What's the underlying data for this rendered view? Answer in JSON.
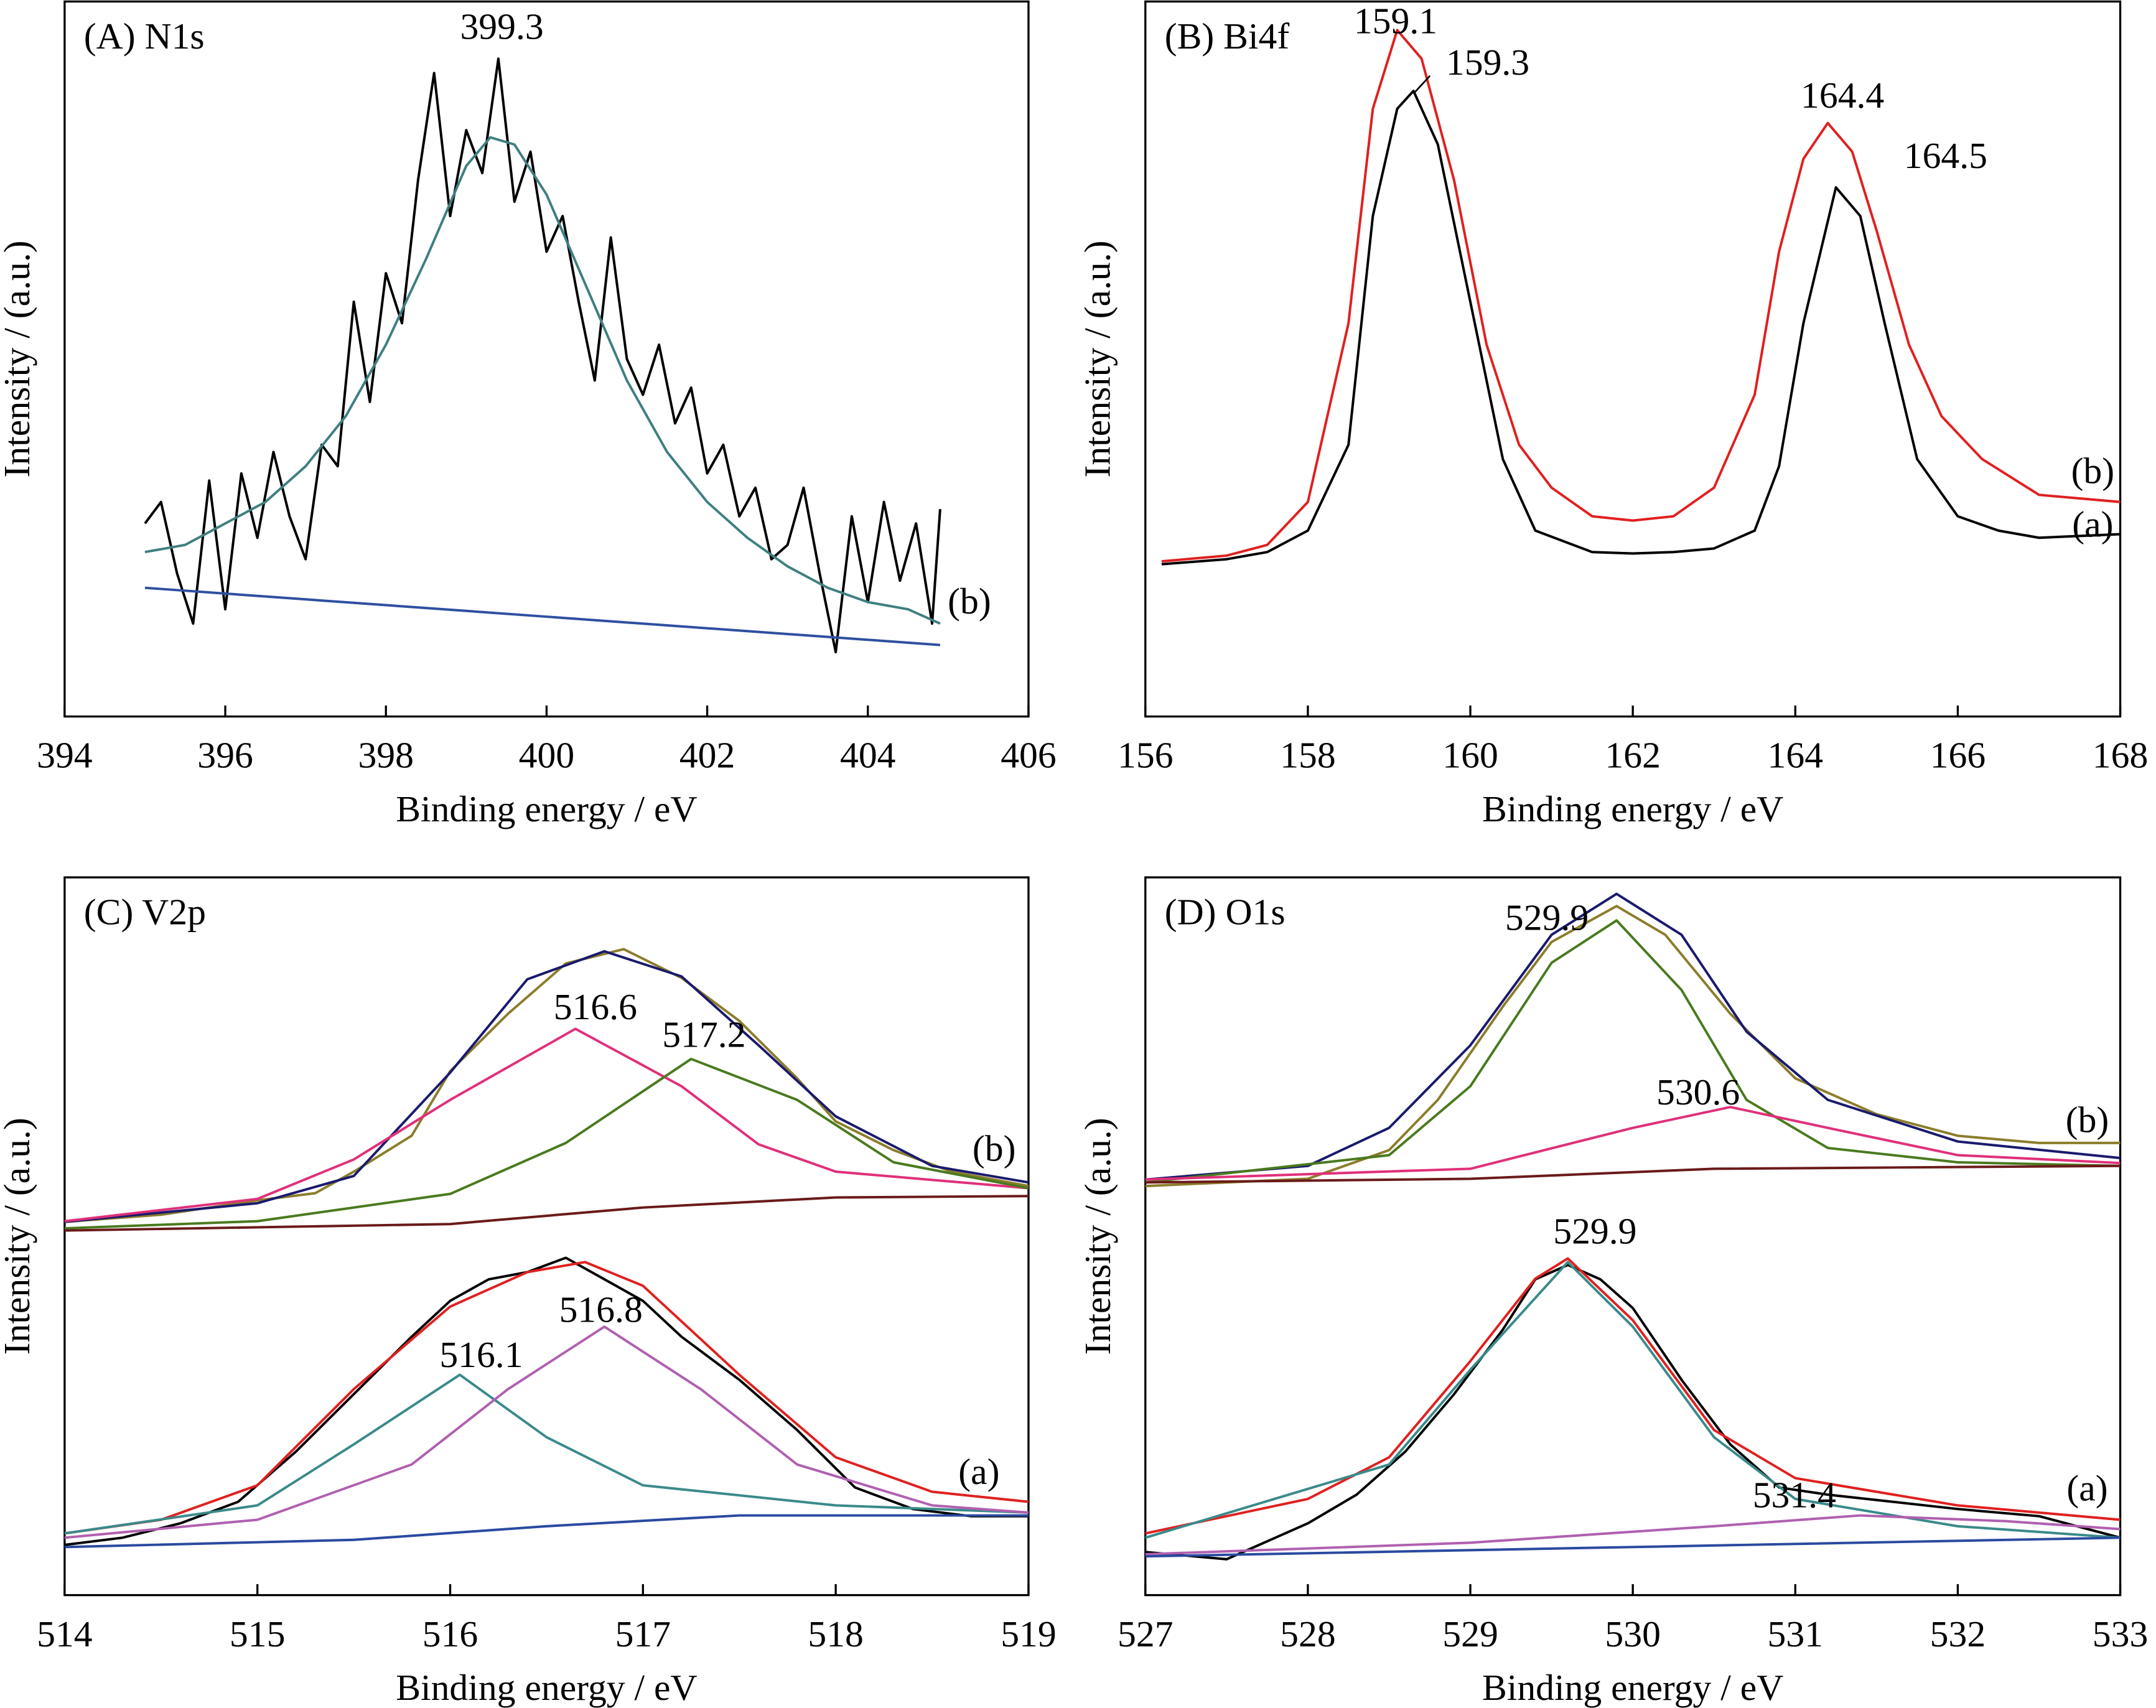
{
  "chart_data": [
    {
      "type": "line",
      "title": "(A) N1s",
      "x_label": "Binding energy / eV",
      "y_label": "Intensity / (a.u.)",
      "xlim": [
        394,
        406
      ],
      "xticks": [
        394,
        396,
        398,
        400,
        402,
        404,
        406
      ],
      "ylim": [
        0,
        100
      ],
      "annotations": [
        "399.3"
      ],
      "series": [
        {
          "name": "(b)",
          "color": "#000000",
          "x": [
            395.0,
            395.2,
            395.4,
            395.6,
            395.8,
            396.0,
            396.2,
            396.4,
            396.6,
            396.8,
            397.0,
            397.2,
            397.4,
            397.6,
            397.8,
            398.0,
            398.2,
            398.4,
            398.6,
            398.8,
            399.0,
            399.2,
            399.4,
            399.6,
            399.8,
            400.0,
            400.2,
            400.4,
            400.6,
            400.8,
            401.0,
            401.2,
            401.4,
            401.6,
            401.8,
            402.0,
            402.2,
            402.4,
            402.6,
            402.8,
            403.0,
            403.2,
            403.4,
            403.6,
            403.8,
            404.0,
            404.2,
            404.4,
            404.6,
            404.8,
            404.9
          ],
          "values": [
            27,
            30,
            20,
            13,
            33,
            15,
            34,
            25,
            37,
            28,
            22,
            38,
            35,
            58,
            44,
            62,
            55,
            75,
            90,
            70,
            82,
            76,
            92,
            72,
            79,
            65,
            70,
            58,
            47,
            67,
            50,
            45,
            52,
            41,
            46,
            34,
            38,
            28,
            32,
            22,
            24,
            32,
            20,
            9,
            28,
            16,
            30,
            19,
            27,
            13,
            29
          ]
        },
        {
          "color": "#3f7f80",
          "x": [
            395,
            395.5,
            396,
            396.5,
            397,
            397.5,
            398,
            398.5,
            399,
            399.3,
            399.6,
            400,
            400.5,
            401,
            401.5,
            402,
            402.5,
            403,
            403.5,
            404,
            404.5,
            404.9
          ],
          "values": [
            23,
            24,
            27,
            30,
            35,
            42,
            52,
            64,
            77,
            81,
            80,
            73,
            60,
            47,
            37,
            30,
            25,
            21,
            18,
            16,
            15,
            13
          ]
        },
        {
          "color": "#2f4fa0",
          "x": [
            395,
            404.9
          ],
          "values": [
            18,
            10
          ]
        }
      ]
    },
    {
      "type": "line",
      "title": "(B) Bi4f",
      "x_label": "Binding energy / eV",
      "y_label": "Intensity / (a.u.)",
      "xlim": [
        156,
        168
      ],
      "xticks": [
        156,
        158,
        160,
        162,
        164,
        166,
        168
      ],
      "ylim": [
        0,
        100
      ],
      "annotations": [
        "159.1",
        "159.3",
        "164.4",
        "164.5"
      ],
      "series": [
        {
          "name": "(b)",
          "color": "#e02020",
          "x": [
            156.2,
            157,
            157.5,
            158,
            158.5,
            158.8,
            159.1,
            159.4,
            159.8,
            160.2,
            160.6,
            161,
            161.5,
            162,
            162.5,
            163,
            163.5,
            163.8,
            164.1,
            164.4,
            164.7,
            165,
            165.4,
            165.8,
            166.3,
            167,
            168
          ],
          "values": [
            21.7,
            22.5,
            24,
            30,
            55,
            85,
            96,
            92,
            75,
            52,
            38,
            32,
            28,
            27.4,
            28,
            32,
            45,
            65,
            78,
            83,
            79,
            68,
            52,
            42,
            36,
            31,
            30
          ]
        },
        {
          "name": "(a)",
          "color": "#000000",
          "x": [
            156.2,
            157,
            157.5,
            158,
            158.5,
            158.8,
            159.1,
            159.3,
            159.6,
            160,
            160.4,
            160.8,
            161.5,
            162,
            162.5,
            163,
            163.5,
            163.8,
            164.1,
            164.5,
            164.8,
            165.1,
            165.5,
            166,
            166.5,
            167,
            168
          ],
          "values": [
            21.3,
            22,
            23,
            26,
            38,
            70,
            85,
            87.5,
            80,
            58,
            36,
            26,
            23,
            22.8,
            23,
            23.5,
            26,
            35,
            55,
            74,
            70,
            55,
            36,
            28,
            26,
            25,
            25.5
          ]
        }
      ]
    },
    {
      "type": "line",
      "title": "(C) V2p",
      "x_label": "Binding energy / eV",
      "y_label": "Intensity / (a.u.)",
      "xlim": [
        514,
        519
      ],
      "xticks": [
        514,
        515,
        516,
        517,
        518,
        519
      ],
      "ylim": [
        0,
        100
      ],
      "annotations": [
        "516.6",
        "517.2",
        "516.1",
        "516.8"
      ],
      "series": [
        {
          "name": "(b)",
          "color": "#8b7d2b",
          "x": [
            514,
            514.5,
            515,
            515.3,
            515.5,
            515.8,
            516,
            516.3,
            516.6,
            516.9,
            517.2,
            517.5,
            517.8,
            518,
            518.3,
            518.6,
            519
          ],
          "values": [
            52,
            53,
            55,
            56,
            59,
            64,
            73,
            81,
            88,
            90,
            86,
            80,
            72,
            66,
            62,
            59,
            57
          ]
        },
        {
          "color": "#1a1a6e",
          "x": [
            514,
            515,
            515.5,
            516,
            516.4,
            516.8,
            517.2,
            517.6,
            518,
            518.5,
            519
          ],
          "values": [
            52,
            54.6,
            58.4,
            72.8,
            85.8,
            89.7,
            86.2,
            76.6,
            66.7,
            59.8,
            57.5
          ]
        },
        {
          "color": "#e0307a",
          "x": [
            514,
            515,
            515.5,
            516,
            516.65,
            517.2,
            517.6,
            518,
            519
          ],
          "values": [
            52.1,
            55.2,
            60.7,
            69,
            78.9,
            70.9,
            62.8,
            59,
            56.7
          ]
        },
        {
          "color": "#4a7a1e",
          "x": [
            514,
            515,
            516,
            516.6,
            517.25,
            517.8,
            518.3,
            519
          ],
          "values": [
            51.1,
            52.1,
            55.9,
            63,
            74.7,
            69,
            60.3,
            56.7
          ]
        },
        {
          "color": "#6b1a1a",
          "x": [
            514,
            516,
            517,
            518,
            519
          ],
          "values": [
            50.8,
            51.7,
            54,
            55.4,
            55.6
          ]
        },
        {
          "name": "(a)",
          "color": "#000000",
          "x": [
            514,
            514.3,
            514.6,
            514.9,
            515.2,
            515.5,
            515.8,
            516,
            516.2,
            516.4,
            516.6,
            516.8,
            517,
            517.2,
            517.5,
            517.8,
            518.1,
            518.4,
            518.7,
            519
          ],
          "values": [
            7,
            8,
            10,
            13,
            20,
            28,
            36,
            41,
            44,
            45,
            47,
            44,
            41,
            36,
            30,
            23,
            15,
            12,
            11,
            11
          ]
        },
        {
          "color": "#e02020",
          "x": [
            514,
            514.5,
            515,
            515.5,
            516,
            516.4,
            516.7,
            517,
            517.5,
            518,
            518.5,
            519
          ],
          "values": [
            8.6,
            10.5,
            15.3,
            28.7,
            40.2,
            45,
            46.4,
            43.1,
            30.7,
            19.2,
            14.4,
            13
          ]
        },
        {
          "color": "#3a8a8a",
          "x": [
            514,
            515,
            515.5,
            516.05,
            516.5,
            517,
            518,
            519
          ],
          "values": [
            8.6,
            12.5,
            21,
            30.7,
            22,
            15.3,
            12.5,
            11.5
          ]
        },
        {
          "color": "#b060b0",
          "x": [
            514,
            515,
            515.8,
            516.3,
            516.8,
            517.3,
            517.8,
            518.5,
            519
          ],
          "values": [
            8,
            10.5,
            18.2,
            28.7,
            37.4,
            28.7,
            18.2,
            12.5,
            11.5
          ]
        },
        {
          "color": "#2a4aa0",
          "x": [
            514,
            515.5,
            516.5,
            517.5,
            519
          ],
          "values": [
            6.7,
            7.7,
            9.6,
            11.1,
            11.1
          ]
        }
      ]
    },
    {
      "type": "line",
      "title": "(D) O1s",
      "x_label": "Binding energy / eV",
      "y_label": "Intensity / (a.u.)",
      "xlim": [
        527,
        533
      ],
      "xticks": [
        527,
        528,
        529,
        530,
        531,
        532,
        533
      ],
      "ylim": [
        0,
        100
      ],
      "annotations": [
        "529.9",
        "530.6",
        "529.9",
        "531.4"
      ],
      "series": [
        {
          "name": "(b)",
          "color": "#8b7d2b",
          "x": [
            527,
            528,
            528.5,
            528.8,
            529.2,
            529.5,
            529.9,
            530.2,
            530.6,
            531,
            531.5,
            532,
            532.5,
            533
          ],
          "values": [
            57,
            58,
            62,
            69,
            82,
            91,
            96,
            92,
            81,
            72,
            67,
            64,
            63,
            63
          ]
        },
        {
          "color": "#1a1a6e",
          "x": [
            527,
            528,
            528.5,
            529,
            529.5,
            529.9,
            530.3,
            530.7,
            531.2,
            532,
            533
          ],
          "values": [
            57.9,
            59.8,
            65.1,
            76.6,
            92,
            97.7,
            92,
            78.5,
            69,
            63.2,
            60.9
          ]
        },
        {
          "color": "#4a7a1e",
          "x": [
            527,
            528.5,
            529,
            529.5,
            529.9,
            530.3,
            530.7,
            531.2,
            532,
            533
          ],
          "values": [
            57.5,
            61.3,
            70.9,
            88.1,
            94,
            84.3,
            69,
            62.3,
            60.3,
            59.8
          ]
        },
        {
          "color": "#e0307a",
          "x": [
            527,
            529,
            530,
            530.6,
            531.2,
            532,
            533
          ],
          "values": [
            57.9,
            59.4,
            65.1,
            68,
            65.1,
            61.3,
            60.2
          ]
        },
        {
          "color": "#6b1a1a",
          "x": [
            527,
            529,
            530.5,
            533
          ],
          "values": [
            57.5,
            58,
            59.4,
            59.8
          ]
        },
        {
          "name": "(a)",
          "color": "#000000",
          "x": [
            527,
            527.5,
            528,
            528.3,
            528.6,
            528.9,
            529.2,
            529.4,
            529.6,
            529.8,
            530,
            530.3,
            530.6,
            530.9,
            531.2,
            531.6,
            532,
            532.5,
            533
          ],
          "values": [
            6,
            5,
            10,
            14,
            20,
            28,
            37,
            44,
            46,
            44,
            40,
            30,
            21,
            15,
            14,
            13,
            12,
            11,
            8
          ]
        },
        {
          "color": "#e02020",
          "x": [
            527,
            528,
            528.5,
            529,
            529.4,
            529.6,
            530,
            530.5,
            531,
            532,
            533
          ],
          "values": [
            8.6,
            13.4,
            19.2,
            32.6,
            44.1,
            46.9,
            38.3,
            23,
            16.3,
            12.5,
            10.5
          ]
        },
        {
          "color": "#3a8a8a",
          "x": [
            527,
            528.5,
            529,
            529.6,
            530,
            530.5,
            531,
            532,
            533
          ],
          "values": [
            8,
            18.2,
            31.4,
            46.4,
            37.4,
            22,
            13.4,
            9.6,
            8
          ]
        },
        {
          "color": "#b060b0",
          "x": [
            527,
            529,
            530.5,
            531.4,
            532.3,
            533
          ],
          "values": [
            5.7,
            7.3,
            9.6,
            11.1,
            10.3,
            9.2
          ]
        },
        {
          "color": "#2a4aa0",
          "x": [
            527,
            530,
            533
          ],
          "values": [
            5.4,
            6.7,
            8
          ]
        }
      ]
    }
  ]
}
